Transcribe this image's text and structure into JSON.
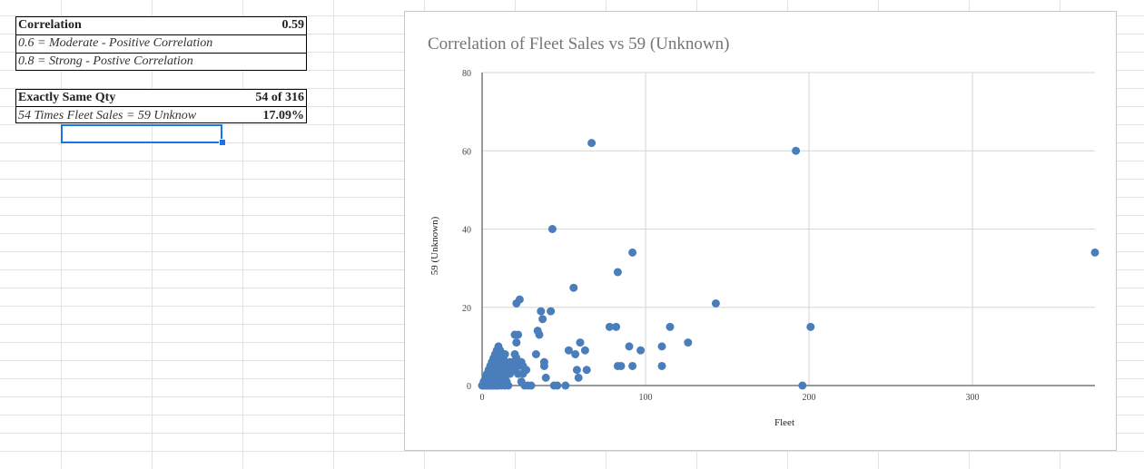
{
  "sheet": {
    "correlation": {
      "label": "Correlation",
      "value": "0.59"
    },
    "legend_rows": [
      "0.6 = Moderate - Positive Correlation",
      "0.8 = Strong - Postive Correlation"
    ],
    "exact_same": {
      "label": "Exactly Same Qty",
      "value": "54 of 316"
    },
    "times_row": {
      "label": "54 Times Fleet Sales = 59 Unknow",
      "value": "17.09%"
    }
  },
  "chart_data": {
    "type": "scatter",
    "title": "Correlation of Fleet Sales vs 59 (Unknown)",
    "xlabel": "Fleet",
    "ylabel": "59 (Unknown)",
    "xlim": [
      0,
      375
    ],
    "ylim": [
      0,
      80
    ],
    "xticks": [
      0,
      100,
      200,
      300
    ],
    "yticks": [
      0,
      20,
      40,
      60,
      80
    ],
    "grid": true,
    "point_color": "#4a7ebb",
    "points": [
      [
        0,
        0
      ],
      [
        1,
        0
      ],
      [
        2,
        0
      ],
      [
        3,
        0
      ],
      [
        4,
        0
      ],
      [
        5,
        0
      ],
      [
        6,
        0
      ],
      [
        7,
        0
      ],
      [
        8,
        0
      ],
      [
        9,
        0
      ],
      [
        10,
        0
      ],
      [
        12,
        0
      ],
      [
        14,
        0
      ],
      [
        16,
        0
      ],
      [
        1,
        1
      ],
      [
        2,
        1
      ],
      [
        3,
        1
      ],
      [
        4,
        1
      ],
      [
        5,
        1
      ],
      [
        6,
        1
      ],
      [
        7,
        1
      ],
      [
        8,
        1
      ],
      [
        9,
        1
      ],
      [
        10,
        1
      ],
      [
        11,
        1
      ],
      [
        13,
        1
      ],
      [
        2,
        2
      ],
      [
        3,
        2
      ],
      [
        4,
        2
      ],
      [
        5,
        2
      ],
      [
        6,
        2
      ],
      [
        7,
        2
      ],
      [
        8,
        2
      ],
      [
        9,
        2
      ],
      [
        10,
        2
      ],
      [
        12,
        2
      ],
      [
        14,
        2
      ],
      [
        3,
        3
      ],
      [
        4,
        3
      ],
      [
        5,
        3
      ],
      [
        6,
        3
      ],
      [
        7,
        3
      ],
      [
        8,
        3
      ],
      [
        9,
        3
      ],
      [
        10,
        3
      ],
      [
        11,
        3
      ],
      [
        13,
        3
      ],
      [
        4,
        4
      ],
      [
        5,
        4
      ],
      [
        6,
        4
      ],
      [
        7,
        4
      ],
      [
        8,
        4
      ],
      [
        9,
        4
      ],
      [
        10,
        4
      ],
      [
        12,
        4
      ],
      [
        15,
        4
      ],
      [
        5,
        5
      ],
      [
        6,
        5
      ],
      [
        7,
        5
      ],
      [
        8,
        5
      ],
      [
        9,
        5
      ],
      [
        10,
        5
      ],
      [
        11,
        5
      ],
      [
        13,
        5
      ],
      [
        16,
        5
      ],
      [
        6,
        6
      ],
      [
        7,
        6
      ],
      [
        8,
        6
      ],
      [
        9,
        6
      ],
      [
        10,
        6
      ],
      [
        12,
        6
      ],
      [
        14,
        6
      ],
      [
        17,
        6
      ],
      [
        7,
        7
      ],
      [
        8,
        7
      ],
      [
        9,
        7
      ],
      [
        10,
        7
      ],
      [
        11,
        7
      ],
      [
        13,
        7
      ],
      [
        8,
        8
      ],
      [
        9,
        8
      ],
      [
        10,
        8
      ],
      [
        12,
        8
      ],
      [
        14,
        8
      ],
      [
        9,
        9
      ],
      [
        10,
        9
      ],
      [
        11,
        9
      ],
      [
        10,
        10
      ],
      [
        3,
        0
      ],
      [
        5,
        1
      ],
      [
        7,
        2
      ],
      [
        9,
        3
      ],
      [
        11,
        4
      ],
      [
        13,
        2
      ],
      [
        15,
        1
      ],
      [
        17,
        3
      ],
      [
        18,
        5
      ],
      [
        19,
        6
      ],
      [
        20,
        4
      ],
      [
        21,
        7
      ],
      [
        22,
        5
      ],
      [
        20,
        8
      ],
      [
        21,
        11
      ],
      [
        20,
        13
      ],
      [
        22,
        13
      ],
      [
        21,
        21
      ],
      [
        23,
        22
      ],
      [
        24,
        6
      ],
      [
        25,
        5
      ],
      [
        26,
        4
      ],
      [
        27,
        4
      ],
      [
        25,
        3
      ],
      [
        22,
        3
      ],
      [
        24,
        1
      ],
      [
        26,
        0
      ],
      [
        28,
        0
      ],
      [
        30,
        0
      ],
      [
        33,
        8
      ],
      [
        34,
        14
      ],
      [
        35,
        13
      ],
      [
        36,
        19
      ],
      [
        37,
        17
      ],
      [
        38,
        6
      ],
      [
        38,
        5
      ],
      [
        39,
        2
      ],
      [
        42,
        19
      ],
      [
        43,
        40
      ],
      [
        44,
        0
      ],
      [
        46,
        0
      ],
      [
        51,
        0
      ],
      [
        53,
        9
      ],
      [
        56,
        25
      ],
      [
        57,
        8
      ],
      [
        58,
        4
      ],
      [
        59,
        2
      ],
      [
        60,
        11
      ],
      [
        63,
        9
      ],
      [
        64,
        4
      ],
      [
        67,
        62
      ],
      [
        78,
        15
      ],
      [
        82,
        15
      ],
      [
        83,
        29
      ],
      [
        83,
        5
      ],
      [
        85,
        5
      ],
      [
        90,
        10
      ],
      [
        92,
        34
      ],
      [
        92,
        5
      ],
      [
        97,
        9
      ],
      [
        110,
        10
      ],
      [
        110,
        5
      ],
      [
        115,
        15
      ],
      [
        126,
        11
      ],
      [
        143,
        21
      ],
      [
        192,
        60
      ],
      [
        196,
        0
      ],
      [
        201,
        15
      ],
      [
        375,
        34
      ]
    ]
  }
}
